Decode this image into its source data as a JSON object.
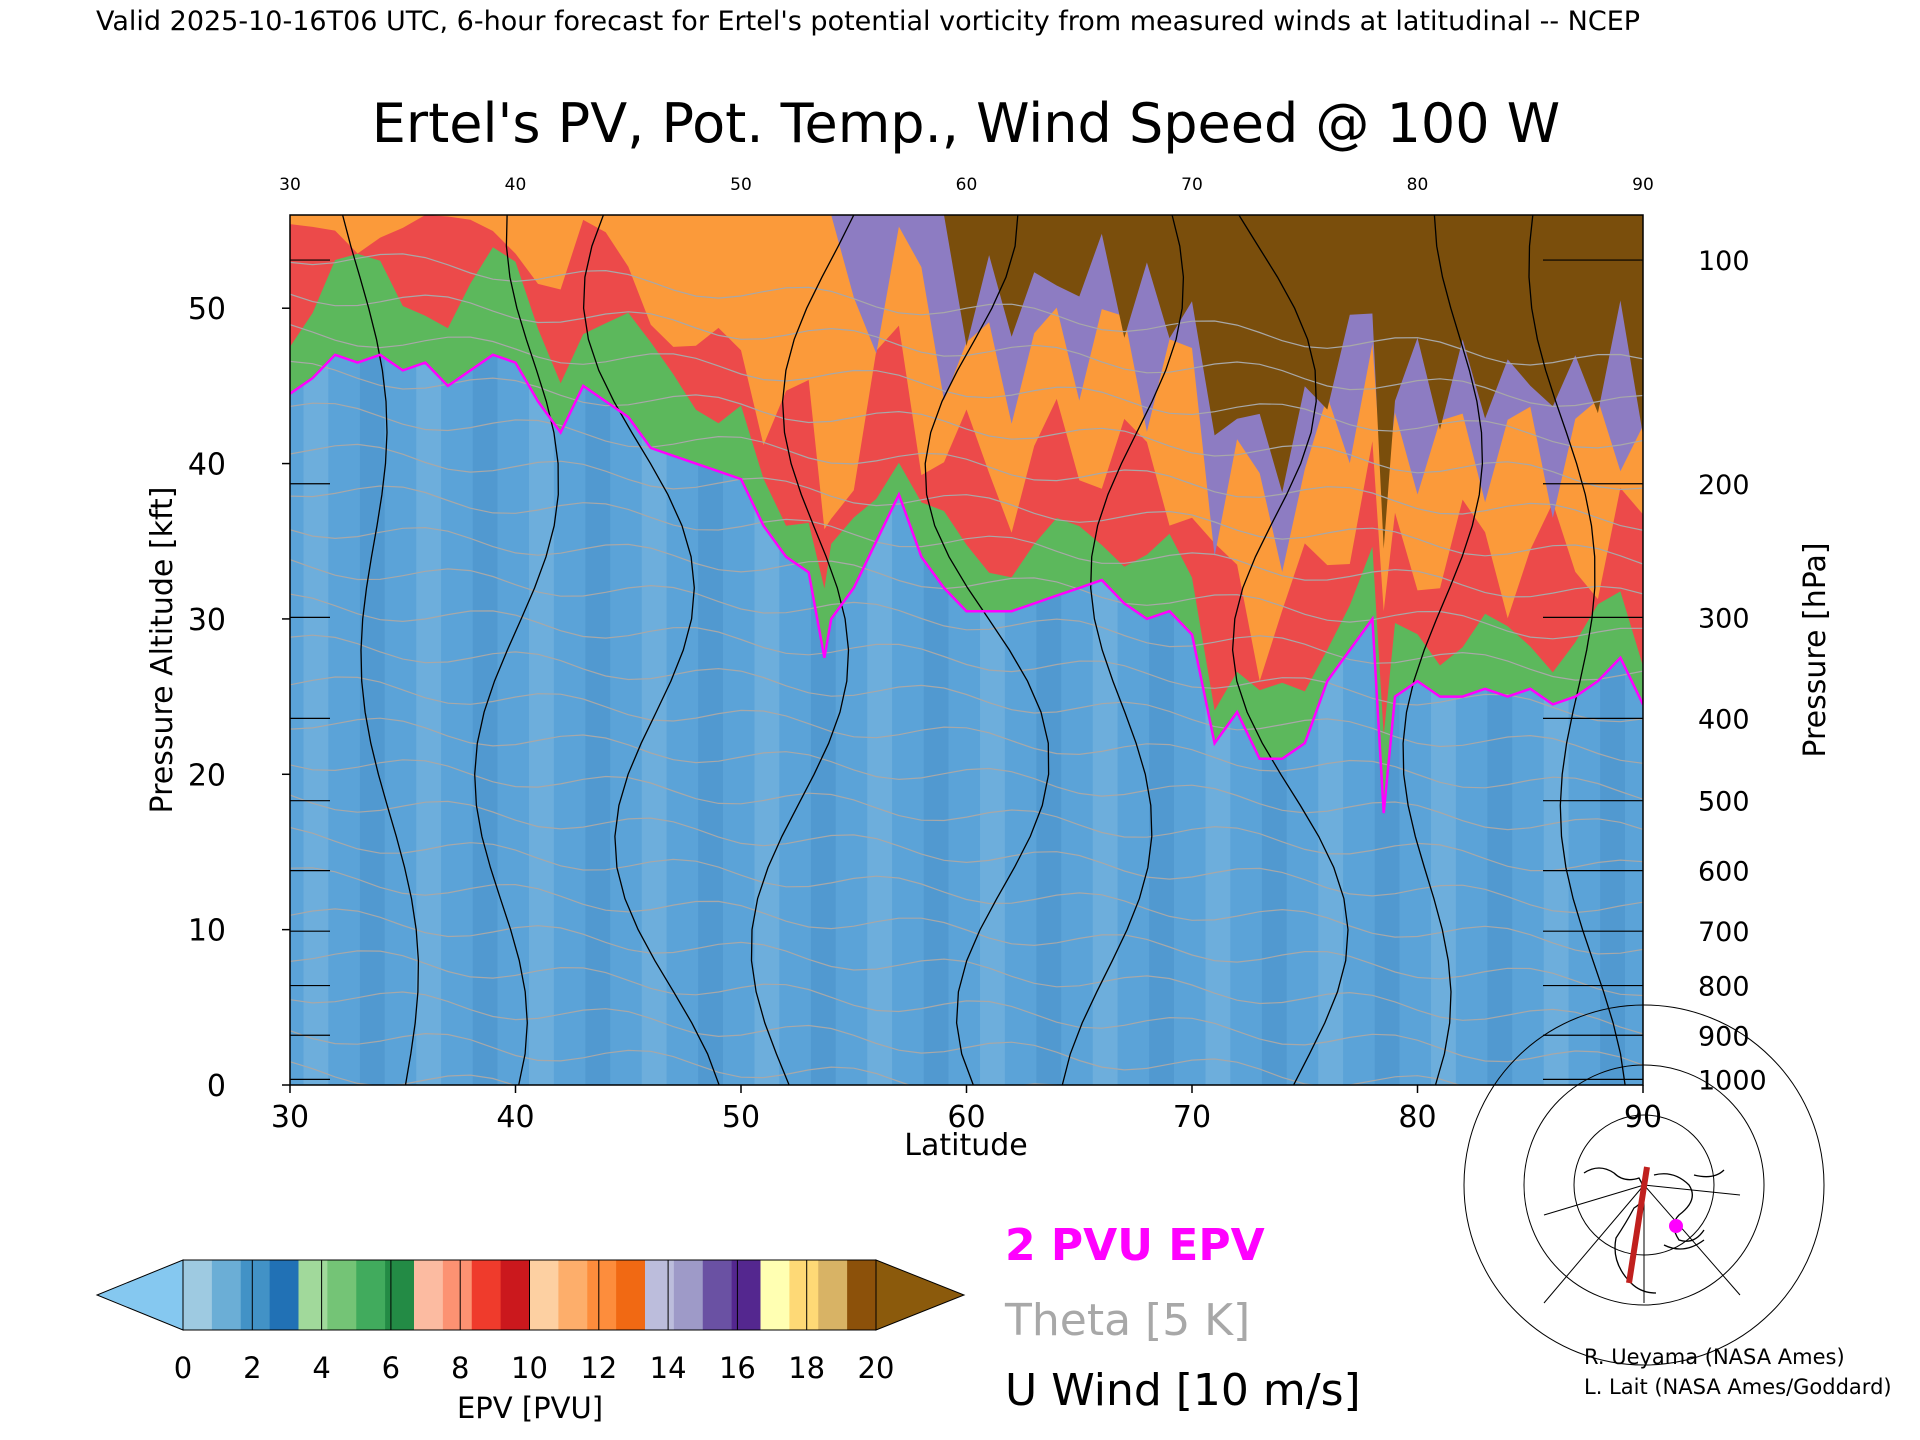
{
  "header": {
    "valid_line": "Valid 2025-10-16T06 UTC, 6-hour forecast for Ertel's potential vorticity from measured winds at latitudinal -- NCEP"
  },
  "chart_data": {
    "type": "heatmap",
    "title": "Ertel's PV, Pot. Temp., Wind Speed @ 100 W",
    "xlabel": "Latitude",
    "ylabel": "Pressure Altitude [kft]",
    "y2label": "Pressure [hPa]",
    "xlim": [
      30,
      90
    ],
    "ylim": [
      0,
      56
    ],
    "x_ticks": [
      30,
      40,
      50,
      60,
      70,
      80,
      90
    ],
    "x_top_ticks": [
      30,
      40,
      50,
      60,
      70,
      80,
      90
    ],
    "y_ticks": [
      0,
      10,
      20,
      30,
      40,
      50
    ],
    "pressure_ticks": [
      {
        "p": 100,
        "kft": 53.1
      },
      {
        "p": 200,
        "kft": 38.7
      },
      {
        "p": 300,
        "kft": 30.1
      },
      {
        "p": 400,
        "kft": 23.6
      },
      {
        "p": 500,
        "kft": 18.3
      },
      {
        "p": 600,
        "kft": 13.8
      },
      {
        "p": 700,
        "kft": 9.9
      },
      {
        "p": 800,
        "kft": 6.4
      },
      {
        "p": 900,
        "kft": 3.2
      },
      {
        "p": 1000,
        "kft": 0.36
      }
    ],
    "tropopause_2pvu": [
      [
        30,
        44.5
      ],
      [
        31,
        45.5
      ],
      [
        32,
        47
      ],
      [
        33,
        46.5
      ],
      [
        34,
        47
      ],
      [
        35,
        46
      ],
      [
        36,
        46.5
      ],
      [
        37,
        45
      ],
      [
        38,
        46
      ],
      [
        39,
        47
      ],
      [
        40,
        46.5
      ],
      [
        41,
        44
      ],
      [
        42,
        42
      ],
      [
        43,
        45
      ],
      [
        44,
        44
      ],
      [
        45,
        43
      ],
      [
        46,
        41
      ],
      [
        47,
        40.5
      ],
      [
        48,
        40
      ],
      [
        49,
        39.5
      ],
      [
        50,
        39
      ],
      [
        51,
        36
      ],
      [
        52,
        34
      ],
      [
        53,
        33
      ],
      [
        53.7,
        27.5
      ],
      [
        54,
        30
      ],
      [
        55,
        32
      ],
      [
        56,
        35
      ],
      [
        57,
        38
      ],
      [
        58,
        34
      ],
      [
        59,
        32
      ],
      [
        60,
        30.5
      ],
      [
        61,
        30.5
      ],
      [
        62,
        30.5
      ],
      [
        63,
        31
      ],
      [
        64,
        31.5
      ],
      [
        65,
        32
      ],
      [
        66,
        32.5
      ],
      [
        67,
        31
      ],
      [
        68,
        30
      ],
      [
        69,
        30.5
      ],
      [
        70,
        29
      ],
      [
        71,
        22
      ],
      [
        72,
        24
      ],
      [
        73,
        21
      ],
      [
        74,
        21
      ],
      [
        75,
        22
      ],
      [
        76,
        26
      ],
      [
        77,
        28
      ],
      [
        78,
        30
      ],
      [
        78.5,
        17.5
      ],
      [
        79,
        25
      ],
      [
        80,
        26
      ],
      [
        81,
        25
      ],
      [
        82,
        25
      ],
      [
        83,
        25.5
      ],
      [
        84,
        25
      ],
      [
        85,
        25.5
      ],
      [
        86,
        24.5
      ],
      [
        87,
        25
      ],
      [
        88,
        26
      ],
      [
        89,
        27.5
      ],
      [
        90,
        24.5
      ]
    ],
    "colorbar": {
      "label": "EPV [PVU]",
      "ticks": [
        0,
        2,
        4,
        6,
        8,
        10,
        12,
        14,
        16,
        18,
        20
      ],
      "colors": [
        "#9ecae1",
        "#6baed6",
        "#4292c6",
        "#2171b5",
        "#a1d99b",
        "#74c476",
        "#41ab5d",
        "#238b45",
        "#fcbba1",
        "#fc9272",
        "#ef3b2c",
        "#cb181d",
        "#fdd0a2",
        "#fdae6b",
        "#fd8d3c",
        "#f16913",
        "#bcbddc",
        "#9e9ac8",
        "#6a51a3",
        "#54278f",
        "#ffffb2",
        "#fed976",
        "#d8b365",
        "#8c510a"
      ],
      "under_color": "#85c8f0",
      "over_color": "#8b5a0c"
    },
    "legend": {
      "epv": "2 PVU EPV",
      "theta": "Theta [5 K]",
      "wind": "U Wind [10 m/s]",
      "epv_color": "#ff00ff",
      "theta_color": "#a8a8a8",
      "wind_color": "#000000"
    },
    "colors": {
      "tropo_blue": "#5ba3d8",
      "strat_green": "#5cb85c",
      "strat_red": "#ec4a4a",
      "strat_orange": "#fb9a3a",
      "strat_purple": "#8d7cc2",
      "strat_brown": "#7a4e0c"
    }
  },
  "credits": {
    "line1": "R. Ueyama (NASA Ames)",
    "line2": "L. Lait (NASA Ames/Goddard)"
  },
  "inset_map": {
    "track_color": "#c0201e",
    "marker_color": "#ff00ff"
  }
}
